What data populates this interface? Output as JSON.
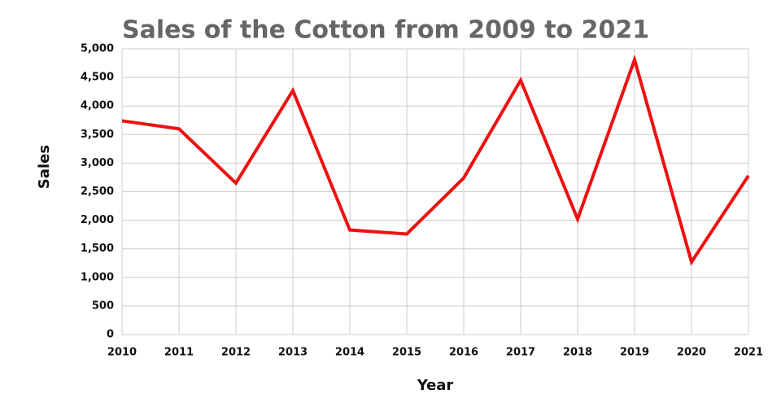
{
  "chart_data": {
    "type": "line",
    "title": "Sales of the Cotton from 2009 to 2021",
    "x_label": "Year",
    "y_label": "Sales",
    "x": [
      2010,
      2011,
      2012,
      2013,
      2014,
      2015,
      2016,
      2017,
      2018,
      2019,
      2020,
      2021
    ],
    "series": [
      {
        "name": "Sales",
        "color": "#ee1111",
        "values": [
          3740,
          3600,
          2650,
          4270,
          1830,
          1760,
          2740,
          4450,
          2020,
          4810,
          1270,
          2780
        ]
      }
    ],
    "xlim": [
      2010,
      2021
    ],
    "xticks": [
      2010,
      2011,
      2012,
      2013,
      2014,
      2015,
      2016,
      2017,
      2018,
      2019,
      2020,
      2021
    ],
    "ylim": [
      0,
      5000
    ],
    "yticks": [
      0,
      500,
      {
        "value": 1000,
        "label": "1,000"
      },
      {
        "value": 1500,
        "label": "1,500"
      },
      {
        "value": 2000,
        "label": "2,000"
      },
      {
        "value": 2500,
        "label": "2,500"
      },
      {
        "value": 3000,
        "label": "3,000"
      },
      {
        "value": 3500,
        "label": "3,500"
      },
      {
        "value": 4000,
        "label": "4,000"
      },
      {
        "value": 4500,
        "label": "4,500"
      },
      {
        "value": 5000,
        "label": "5,000"
      }
    ],
    "grid": true
  }
}
